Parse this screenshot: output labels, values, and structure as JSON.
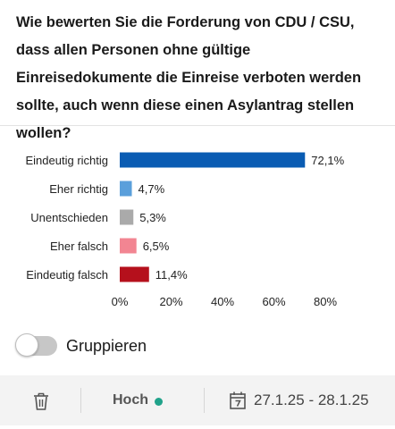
{
  "question": "Wie bewerten Sie die Forderung von CDU / CSU, dass allen Personen ohne gültige Einreisedokumente die Einreise verboten werden sollte, auch wenn diese einen Asylantrag stellen wollen?",
  "chart_data": {
    "type": "bar",
    "orientation": "horizontal",
    "categories": [
      "Eindeutig richtig",
      "Eher richtig",
      "Unentschieden",
      "Eher falsch",
      "Eindeutig falsch"
    ],
    "values": [
      72.1,
      4.7,
      5.3,
      6.5,
      11.4
    ],
    "value_labels": [
      "72,1%",
      "4,7%",
      "5,3%",
      "6,5%",
      "11,4%"
    ],
    "colors": [
      "#0a5cb3",
      "#5a9fdb",
      "#aaaaaa",
      "#f28592",
      "#b5101c"
    ],
    "xlim": [
      0,
      80
    ],
    "xticks": [
      0,
      20,
      40,
      60,
      80
    ],
    "xtick_labels": [
      "0%",
      "20%",
      "40%",
      "60%",
      "80%"
    ],
    "grid": false
  },
  "toggle": {
    "label": "Gruppieren",
    "on": false
  },
  "footer": {
    "trash_icon": "trash-icon",
    "level_label": "Hoch",
    "status_color": "#20a28a",
    "calendar_icon": "calendar-icon",
    "date_range": "27.1.25 - 28.1.25"
  }
}
